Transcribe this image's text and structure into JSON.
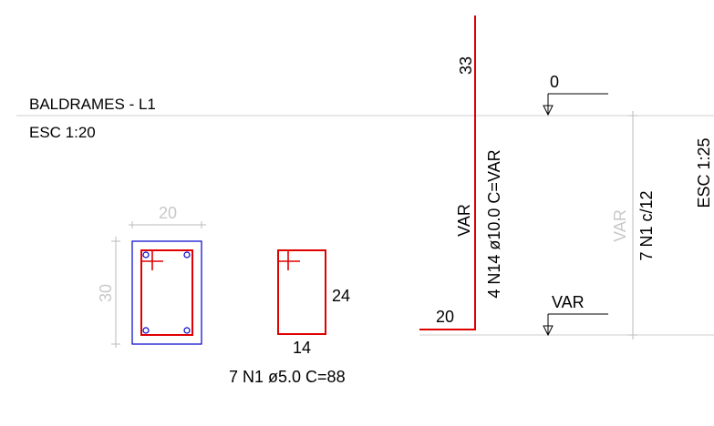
{
  "drawing": {
    "title": "BALDRAMES - L1",
    "scale_left": "ESC 1:20",
    "scale_right": "ESC 1:25"
  },
  "section": {
    "dim_width": "20",
    "dim_height": "30"
  },
  "stirrup": {
    "width_label": "14",
    "height_label": "24",
    "spec": "7 N1 ø5.0  C=88"
  },
  "longitudinal_bar": {
    "top_length": "33",
    "var_label": "VAR",
    "spec": "4 N14 ø10.0  C=VAR",
    "hook_length": "20"
  },
  "levels": {
    "top": "0",
    "bottom": "VAR"
  },
  "elevation": {
    "dim_label": "VAR",
    "stirrup_spacing": "7 N1 c/12"
  },
  "colors": {
    "rebar": "#e00000",
    "concrete_outline": "#0000cc",
    "dimension": "#bbbbbb",
    "text": "#000000"
  }
}
